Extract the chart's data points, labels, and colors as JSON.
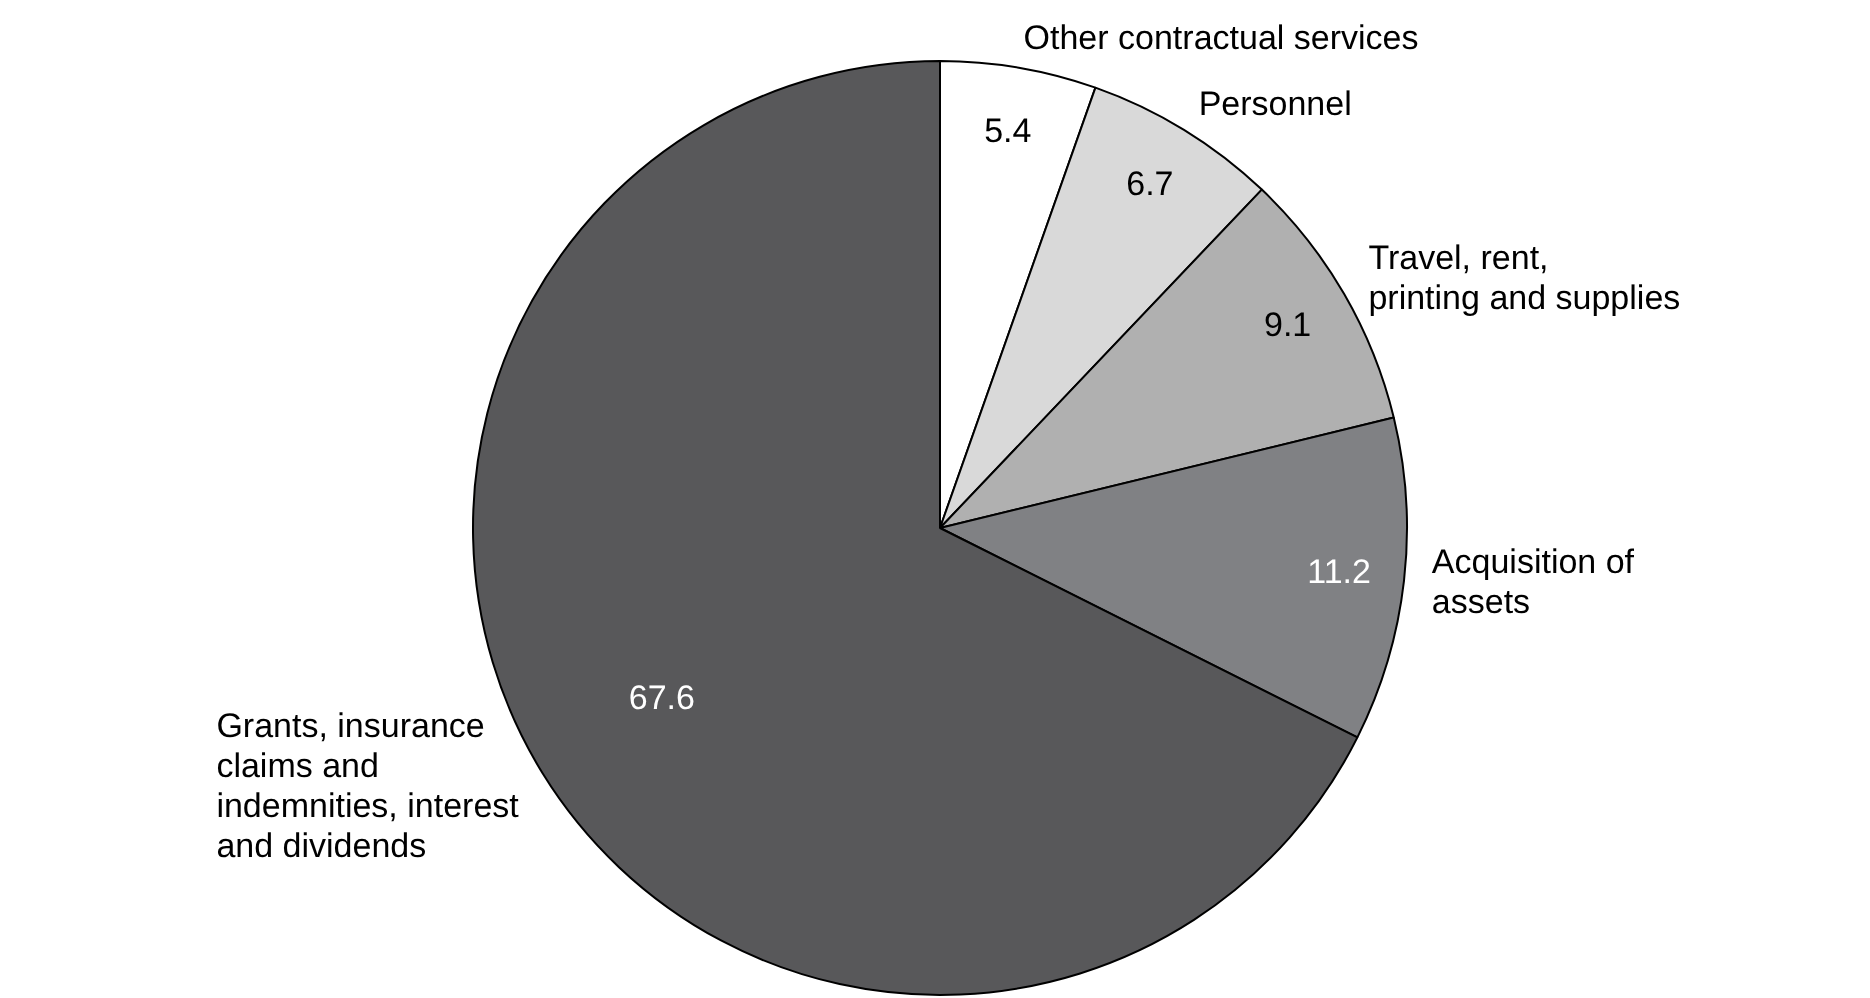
{
  "chart_data": {
    "type": "pie",
    "categories": [
      "Other contractual services",
      "Personnel",
      "Travel, rent,\nprinting and supplies",
      "Acquisition of\nassets",
      "Grants, insurance\nclaims and\nindemnities, interest\nand dividends"
    ],
    "values": [
      5.4,
      6.7,
      9.1,
      11.2,
      67.6
    ],
    "colors": [
      "#ffffff",
      "#d9d9d9",
      "#b0b0b0",
      "#808184",
      "#58585a"
    ],
    "data_labels": true,
    "legend": false
  }
}
